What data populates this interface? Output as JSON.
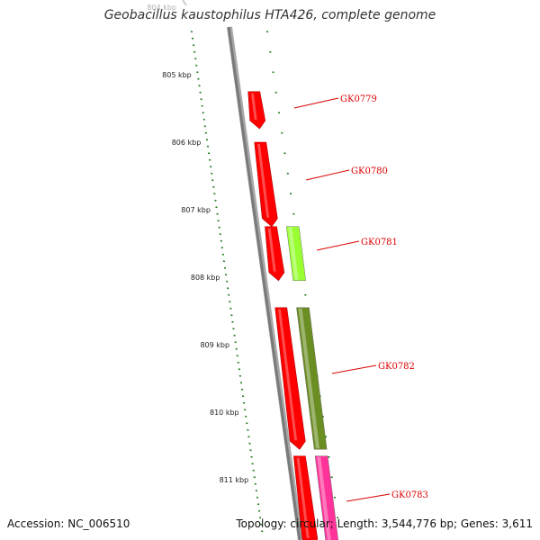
{
  "title": "Geobacillus kaustophilus HTA426, complete genome",
  "footer": {
    "accession": "Accession: NC_006510",
    "summary": "Topology: circular; Length: 3,544,776 bp; Genes: 3,611"
  },
  "colors": {
    "backbone": "#7a7a7a",
    "tick": "#1f7a1f",
    "gene_label": "#dd0000",
    "forward_gene": "#ff0000",
    "cog_lime": "#99ff33",
    "cog_olive": "#6b8e23",
    "cog_pink": "#ff3399"
  },
  "scale": {
    "top_partial_label": "804 kbp",
    "labels": [
      "805 kbp",
      "806 kbp",
      "807 kbp",
      "808 kbp",
      "809 kbp",
      "810 kbp",
      "811 kbp"
    ]
  },
  "genes": [
    {
      "name": "GK0779",
      "strand_color": "#ff0000",
      "start_kbp": 805.25,
      "end_kbp": 805.8
    },
    {
      "name": "GK0780",
      "strand_color": "#ff0000",
      "start_kbp": 806.0,
      "end_kbp": 807.25
    },
    {
      "name": "GK0781",
      "strand_color": "#ff0000",
      "cog_color": "#99ff33",
      "start_kbp": 807.25,
      "end_kbp": 808.05
    },
    {
      "name": "GK0782",
      "strand_color": "#ff0000",
      "cog_color": "#6b8e23",
      "start_kbp": 808.45,
      "end_kbp": 810.55
    },
    {
      "name": "GK0783",
      "strand_color": "#ff0000",
      "cog_color": "#ff3399",
      "start_kbp": 810.65,
      "end_kbp": 812.0
    }
  ]
}
